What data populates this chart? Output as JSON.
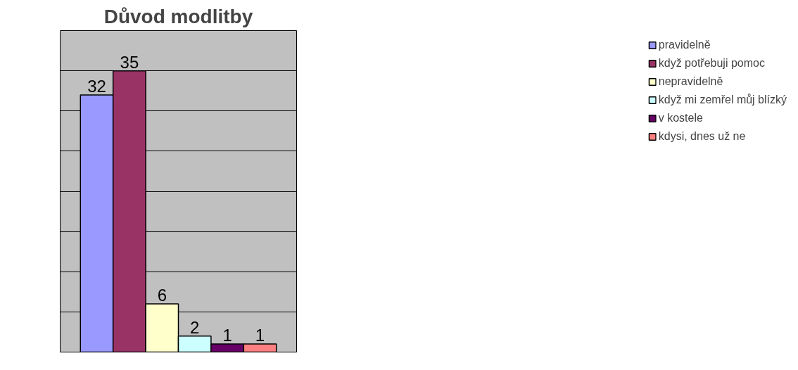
{
  "chart_data": {
    "type": "bar",
    "title": "Důvod modlitby",
    "categories": [
      null
    ],
    "series": [
      {
        "name": "pravidelně",
        "color": "#9999ff",
        "values": [
          32
        ]
      },
      {
        "name": "když potřebuji pomoc",
        "color": "#993366",
        "values": [
          35
        ]
      },
      {
        "name": "nepravidelně",
        "color": "#ffffcc",
        "values": [
          6
        ]
      },
      {
        "name": "když mi zemřel můj blízký",
        "color": "#ccffff",
        "values": [
          2
        ]
      },
      {
        "name": "v kostele",
        "color": "#660066",
        "values": [
          1
        ]
      },
      {
        "name": "kdysi, dnes už ne",
        "color": "#ff8080",
        "values": [
          1
        ]
      }
    ],
    "ylim": [
      0,
      40
    ],
    "yticks": [
      0,
      5,
      10,
      15,
      20,
      25,
      30,
      35,
      40
    ],
    "grid": "y",
    "tick_labels": false,
    "legend": "right",
    "data_labels": true
  }
}
